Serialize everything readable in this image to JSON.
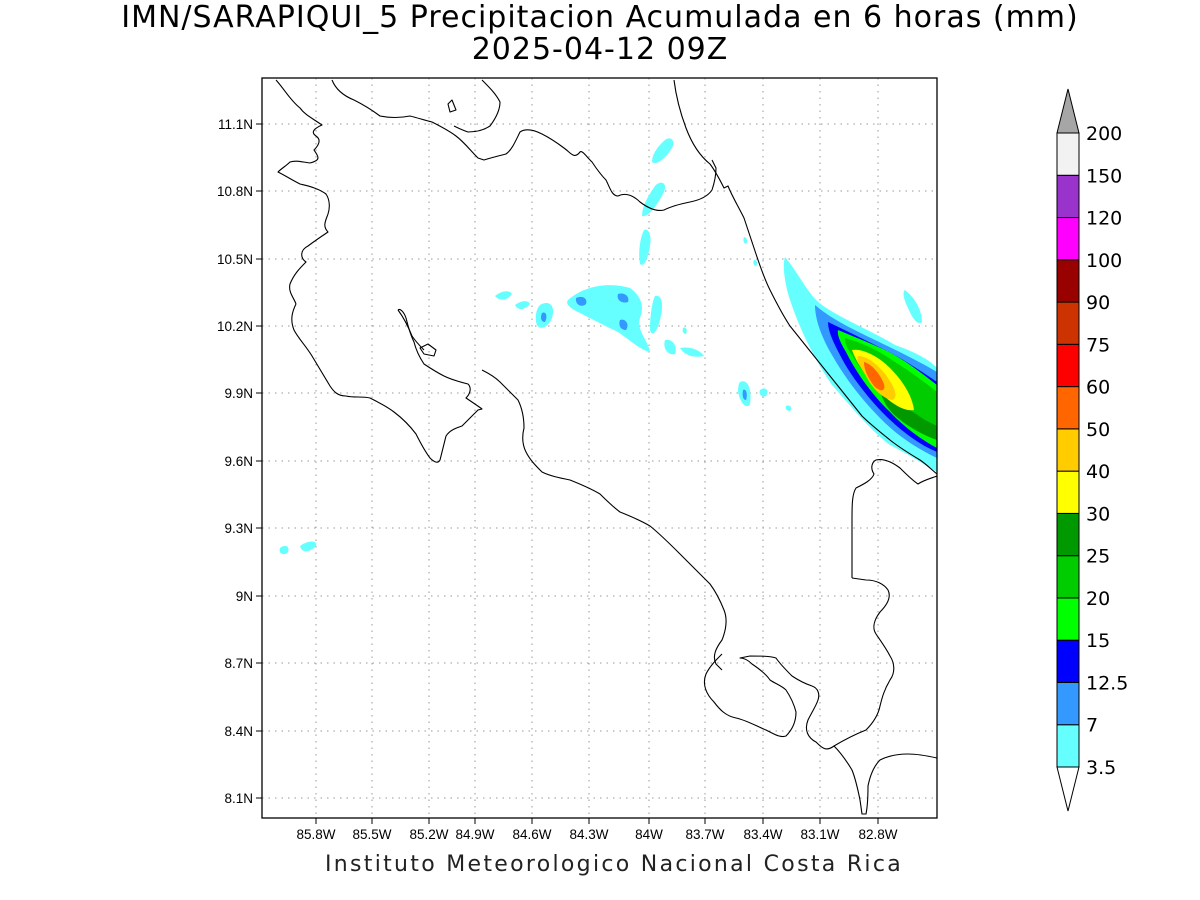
{
  "title": {
    "line1": "IMN/SARAPIQUI_5 Precipitacion Acumulada en 6 horas (mm)",
    "line2": "2025-04-12 09Z"
  },
  "footer": "Instituto Meteorologico Nacional Costa Rica",
  "map": {
    "region": "Costa Rica",
    "variable": "Precipitacion Acumulada en 6 horas",
    "units": "mm",
    "lon_range": [
      -86.0,
      -82.5
    ],
    "lat_range": [
      8.0,
      11.3
    ],
    "lon_ticks": [
      "85.8W",
      "85.5W",
      "85.2W",
      "84.9W",
      "84.6W",
      "84.3W",
      "84W",
      "83.7W",
      "83.4W",
      "83.1W",
      "82.8W"
    ],
    "lat_ticks": [
      "11.1N",
      "10.8N",
      "10.5N",
      "10.2N",
      "9.9N",
      "9.6N",
      "9.3N",
      "9N",
      "8.7N",
      "8.4N",
      "8.1N"
    ],
    "gridlines": "dotted"
  },
  "colorbar": {
    "labels": [
      "3.5",
      "7",
      "12.5",
      "15",
      "20",
      "25",
      "30",
      "40",
      "50",
      "60",
      "75",
      "90",
      "100",
      "120",
      "150",
      "200"
    ],
    "colors": [
      "#ffffff",
      "#66ffff",
      "#3399ff",
      "#0000ff",
      "#00ff00",
      "#00cc00",
      "#009900",
      "#ffff00",
      "#ffcc00",
      "#ff6600",
      "#ff0000",
      "#cc3300",
      "#990000",
      "#ff00ff",
      "#9933cc",
      "#f2f2f2",
      "#a6a6a6"
    ],
    "end_arrows": true
  },
  "precip_colors": {
    "c3_5": "#66ffff",
    "c7": "#3399ff",
    "c12_5": "#0000ff",
    "c15": "#00ff00",
    "c20": "#00cc00",
    "c25": "#009900",
    "c30": "#ffff00",
    "c40": "#ffcc00",
    "c50": "#ff6600"
  }
}
